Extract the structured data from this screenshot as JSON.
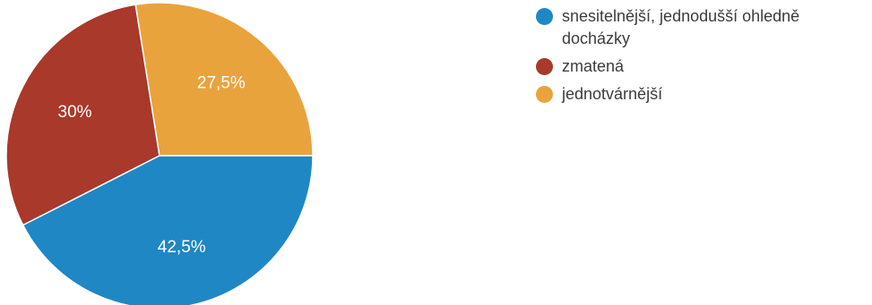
{
  "chart_data": {
    "type": "pie",
    "categories": [
      "snesitelnější, jednodušší ohledně docházky",
      "zmatená",
      "jednotvárnější"
    ],
    "values": [
      42.5,
      30,
      27.5
    ],
    "value_labels": [
      "42,5%",
      "30%",
      "27,5%"
    ],
    "colors": [
      "#1f87c4",
      "#a8392b",
      "#e9a33d"
    ],
    "legend_position": "top-right"
  }
}
